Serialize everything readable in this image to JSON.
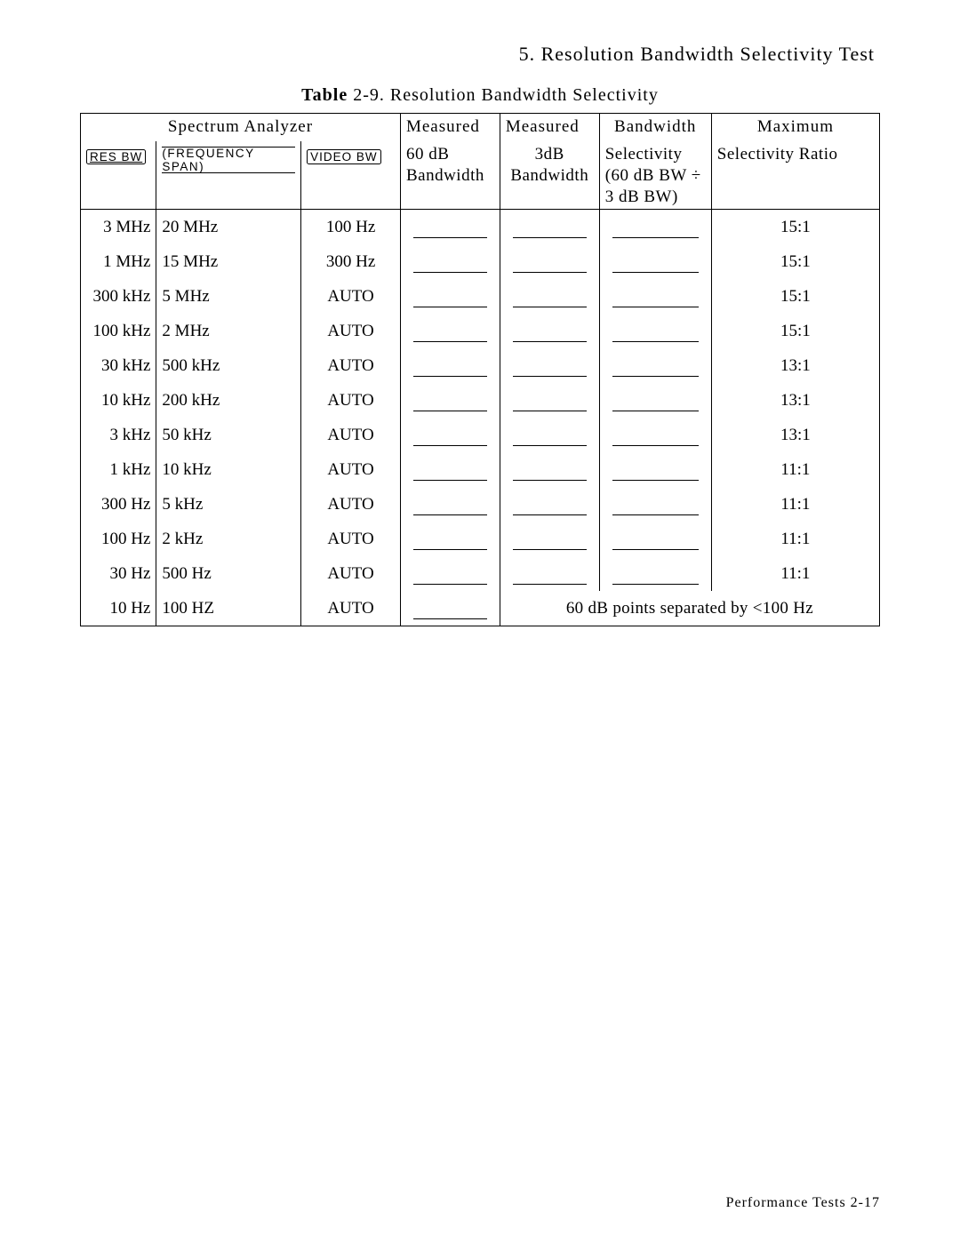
{
  "section_title": "5. Resolution Bandwidth Selectivity Test",
  "caption_bold": "Table",
  "caption_rest": " 2-9. Resolution Bandwidth Selectivity",
  "hdr_spectrum": "Spectrum Analyzer",
  "hdr_m60_top": "Measured",
  "hdr_m3_top": "Measured",
  "hdr_bsel_top": "Bandwidth",
  "hdr_max_top": "Maximum",
  "hdr_res_bw": "RES BW",
  "hdr_freq_span": "(FREQUENCY SPAN)",
  "hdr_video_bw": "VIDEO BW",
  "hdr_m60": "60 dB\nBandwidth",
  "hdr_m3": "3dB\nBandwidth",
  "hdr_bsel": "Selectivity\n(60 dB BW ÷\n3 dB BW)",
  "hdr_max": "Selectivity Ratio",
  "rows": [
    {
      "res": "3 MHz",
      "span": "20 MHz",
      "video": "100 Hz",
      "max": "15:1"
    },
    {
      "res": "1 MHz",
      "span": "15 MHz",
      "video": "300 Hz",
      "max": "15:1"
    },
    {
      "res": "300 kHz",
      "span": "5 MHz",
      "video": "AUTO",
      "max": "15:1"
    },
    {
      "res": "100 kHz",
      "span": "2 MHz",
      "video": "AUTO",
      "max": "15:1"
    },
    {
      "res": "30 kHz",
      "span": "500 kHz",
      "video": "AUTO",
      "max": "13:1"
    },
    {
      "res": "10 kHz",
      "span": "200 kHz",
      "video": "AUTO",
      "max": "13:1"
    },
    {
      "res": "3 kHz",
      "span": "50 kHz",
      "video": "AUTO",
      "max": "13:1"
    },
    {
      "res": "1 kHz",
      "span": "10 kHz",
      "video": "AUTO",
      "max": "11:1"
    },
    {
      "res": "300 Hz",
      "span": "5 kHz",
      "video": "AUTO",
      "max": "11:1"
    },
    {
      "res": "100 Hz",
      "span": "2 kHz",
      "video": "AUTO",
      "max": "11:1"
    },
    {
      "res": "30 Hz",
      "span": "500 Hz",
      "video": "AUTO",
      "max": "11:1"
    }
  ],
  "last_res": "10 Hz",
  "last_span": "100 HZ",
  "last_video": "AUTO",
  "last_note": "60 dB points separated by <100 Hz",
  "footer": "Performance Tests 2-17"
}
